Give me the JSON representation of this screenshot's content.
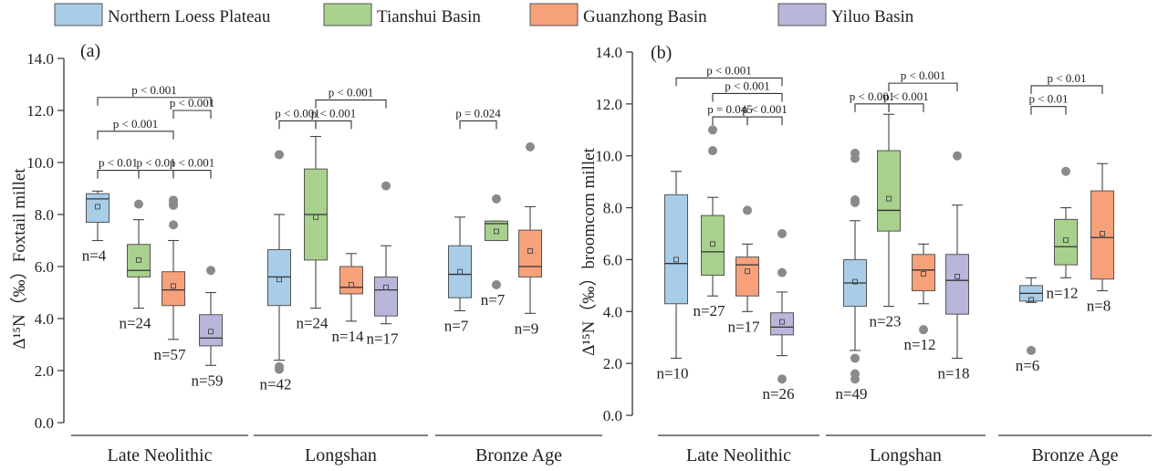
{
  "legend": [
    {
      "name": "Northern Loess Plateau",
      "color": "#a8cde8"
    },
    {
      "name": "Tianshui Basin",
      "color": "#a9d18e"
    },
    {
      "name": "Guanzhong Basin",
      "color": "#f7a17a"
    },
    {
      "name": "Yiluo Basin",
      "color": "#b9b6dc"
    }
  ],
  "chart_data": [
    {
      "type": "box",
      "panel_label": "(a)",
      "ylabel": "Δ¹⁵N（‰）Foxtail millet",
      "ylim": [
        0,
        14
      ],
      "yticks": [
        "0.0",
        "2.0",
        "4.0",
        "6.0",
        "8.0",
        "10.0",
        "12.0",
        "14.0"
      ],
      "periods": [
        "Late Neolithic",
        "Longshan",
        "Bronze Age"
      ],
      "groups": [
        {
          "period": 0,
          "region": 0,
          "n_label": "n=4",
          "min": 7.0,
          "q1": 7.7,
          "median": 8.6,
          "q3": 8.8,
          "max": 8.9,
          "mean": 8.3,
          "outliers": []
        },
        {
          "period": 0,
          "region": 1,
          "n_label": "n=24",
          "min": 4.4,
          "q1": 5.6,
          "median": 5.85,
          "q3": 6.85,
          "max": 7.8,
          "mean": 6.25,
          "outliers": [
            8.4
          ]
        },
        {
          "period": 0,
          "region": 2,
          "n_label": "n=57",
          "min": 3.2,
          "q1": 4.5,
          "median": 5.1,
          "q3": 5.8,
          "max": 7.0,
          "mean": 5.25,
          "outliers": [
            7.6,
            8.35,
            8.45,
            8.55
          ]
        },
        {
          "period": 0,
          "region": 3,
          "n_label": "n=59",
          "min": 2.2,
          "q1": 2.95,
          "median": 3.25,
          "q3": 4.15,
          "max": 5.0,
          "mean": 3.5,
          "outliers": [
            5.85
          ]
        },
        {
          "period": 1,
          "region": 0,
          "n_label": "n=42",
          "min": 2.4,
          "q1": 4.5,
          "median": 5.6,
          "q3": 6.65,
          "max": 8.0,
          "mean": 5.5,
          "outliers": [
            10.3,
            2.05,
            2.15
          ]
        },
        {
          "period": 1,
          "region": 1,
          "n_label": "n=24",
          "min": 4.4,
          "q1": 6.25,
          "median": 8.0,
          "q3": 9.75,
          "max": 11.0,
          "mean": 7.9,
          "outliers": []
        },
        {
          "period": 1,
          "region": 2,
          "n_label": "n=14",
          "min": 3.9,
          "q1": 4.95,
          "median": 5.2,
          "q3": 6.0,
          "max": 6.5,
          "mean": 5.3,
          "outliers": []
        },
        {
          "period": 1,
          "region": 3,
          "n_label": "n=17",
          "min": 3.8,
          "q1": 4.1,
          "median": 5.1,
          "q3": 5.6,
          "max": 6.8,
          "mean": 5.2,
          "outliers": [
            9.1
          ]
        },
        {
          "period": 2,
          "region": 0,
          "n_label": "n=7",
          "min": 4.3,
          "q1": 4.8,
          "median": 5.7,
          "q3": 6.8,
          "max": 7.9,
          "mean": 5.8,
          "outliers": []
        },
        {
          "period": 2,
          "region": 1,
          "n_label": "n=7",
          "min": 7.0,
          "q1": 7.0,
          "median": 7.65,
          "q3": 7.75,
          "max": 7.75,
          "mean": 7.35,
          "outliers": [
            8.6,
            5.3
          ]
        },
        {
          "period": 2,
          "region": 2,
          "n_label": "n=9",
          "min": 4.2,
          "q1": 5.6,
          "median": 6.0,
          "q3": 7.4,
          "max": 8.3,
          "mean": 6.6,
          "outliers": [
            10.6
          ]
        }
      ],
      "comparisons": [
        {
          "from": [
            0,
            0
          ],
          "to": [
            0,
            3
          ],
          "label": "p < 0.001",
          "y": 12.5
        },
        {
          "from": [
            0,
            2
          ],
          "to": [
            0,
            3
          ],
          "label": "p < 0.001",
          "y": 12.0
        },
        {
          "from": [
            0,
            0
          ],
          "to": [
            0,
            2
          ],
          "label": "p < 0.001",
          "y": 11.2
        },
        {
          "from": [
            0,
            0
          ],
          "to": [
            0,
            1
          ],
          "label": "p < 0.01",
          "y": 9.7
        },
        {
          "from": [
            0,
            1
          ],
          "to": [
            0,
            2
          ],
          "label": "p < 0.01",
          "y": 9.7
        },
        {
          "from": [
            0,
            2
          ],
          "to": [
            0,
            3
          ],
          "label": "p < 0.001",
          "y": 9.7
        },
        {
          "from": [
            1,
            1
          ],
          "to": [
            1,
            3
          ],
          "label": "p < 0.001",
          "y": 12.4
        },
        {
          "from": [
            1,
            0
          ],
          "to": [
            1,
            1
          ],
          "label": "p < 0.001",
          "y": 11.6
        },
        {
          "from": [
            1,
            1
          ],
          "to": [
            1,
            2
          ],
          "label": "p < 0.001",
          "y": 11.6
        },
        {
          "from": [
            2,
            0
          ],
          "to": [
            2,
            1
          ],
          "label": "p = 0.024",
          "y": 11.6
        }
      ]
    },
    {
      "type": "box",
      "panel_label": "(b)",
      "ylabel": "Δ¹⁵N（‰）broomcorn millet",
      "ylim": [
        0,
        14
      ],
      "yticks": [
        "0.0",
        "2.0",
        "4.0",
        "6.0",
        "8.0",
        "10.0",
        "12.0",
        "14.0"
      ],
      "periods": [
        "Late Neolithic",
        "Longshan",
        "Bronze Age"
      ],
      "groups": [
        {
          "period": 0,
          "region": 0,
          "n_label": "n=10",
          "min": 2.2,
          "q1": 4.3,
          "median": 5.85,
          "q3": 8.5,
          "max": 9.4,
          "mean": 6.0,
          "outliers": []
        },
        {
          "period": 0,
          "region": 1,
          "n_label": "n=27",
          "min": 4.6,
          "q1": 5.4,
          "median": 6.3,
          "q3": 7.7,
          "max": 8.4,
          "mean": 6.6,
          "outliers": [
            10.2,
            11.0
          ]
        },
        {
          "period": 0,
          "region": 2,
          "n_label": "n=17",
          "min": 4.0,
          "q1": 4.6,
          "median": 5.8,
          "q3": 6.1,
          "max": 6.6,
          "mean": 5.55,
          "outliers": [
            7.9
          ]
        },
        {
          "period": 0,
          "region": 3,
          "n_label": "n=26",
          "min": 2.3,
          "q1": 3.1,
          "median": 3.4,
          "q3": 3.95,
          "max": 4.75,
          "mean": 3.6,
          "outliers": [
            1.4,
            5.5,
            7.0
          ]
        },
        {
          "period": 1,
          "region": 0,
          "n_label": "n=49",
          "min": 2.5,
          "q1": 4.2,
          "median": 5.1,
          "q3": 6.0,
          "max": 7.5,
          "mean": 5.15,
          "outliers": [
            10.1,
            9.9,
            8.3,
            8.2,
            2.2,
            1.6,
            1.4
          ]
        },
        {
          "period": 1,
          "region": 1,
          "n_label": "n=23",
          "min": 4.2,
          "q1": 7.1,
          "median": 7.9,
          "q3": 10.2,
          "max": 11.6,
          "mean": 8.35,
          "outliers": []
        },
        {
          "period": 1,
          "region": 2,
          "n_label": "n=12",
          "min": 4.3,
          "q1": 4.8,
          "median": 5.6,
          "q3": 6.2,
          "max": 6.6,
          "mean": 5.45,
          "outliers": [
            3.3
          ]
        },
        {
          "period": 1,
          "region": 3,
          "n_label": "n=18",
          "min": 2.2,
          "q1": 3.9,
          "median": 5.2,
          "q3": 6.2,
          "max": 8.1,
          "mean": 5.35,
          "outliers": [
            10.0
          ]
        },
        {
          "period": 2,
          "region": 0,
          "n_label": "n=6",
          "min": 4.35,
          "q1": 4.4,
          "median": 4.7,
          "q3": 5.0,
          "max": 5.3,
          "mean": 4.45,
          "outliers": [
            2.5
          ]
        },
        {
          "period": 2,
          "region": 1,
          "n_label": "n=12",
          "min": 5.3,
          "q1": 5.8,
          "median": 6.5,
          "q3": 7.55,
          "max": 8.0,
          "mean": 6.75,
          "outliers": [
            9.4
          ]
        },
        {
          "period": 2,
          "region": 2,
          "n_label": "n=8",
          "min": 4.8,
          "q1": 5.25,
          "median": 6.85,
          "q3": 8.65,
          "max": 9.7,
          "mean": 7.0,
          "outliers": []
        }
      ],
      "comparisons": [
        {
          "from": [
            0,
            0
          ],
          "to": [
            0,
            3
          ],
          "label": "p < 0.001",
          "y": 13.0
        },
        {
          "from": [
            0,
            1
          ],
          "to": [
            0,
            3
          ],
          "label": "p < 0.001",
          "y": 12.4
        },
        {
          "from": [
            0,
            1
          ],
          "to": [
            0,
            2
          ],
          "label": "p = 0.045",
          "y": 11.5
        },
        {
          "from": [
            0,
            2
          ],
          "to": [
            0,
            3
          ],
          "label": "p < 0.001",
          "y": 11.5
        },
        {
          "from": [
            1,
            1
          ],
          "to": [
            1,
            3
          ],
          "label": "p < 0.001",
          "y": 12.8
        },
        {
          "from": [
            1,
            0
          ],
          "to": [
            1,
            1
          ],
          "label": "p < 0.001",
          "y": 12.0
        },
        {
          "from": [
            1,
            1
          ],
          "to": [
            1,
            2
          ],
          "label": "p < 0.001",
          "y": 12.0
        },
        {
          "from": [
            2,
            0
          ],
          "to": [
            2,
            2
          ],
          "label": "p < 0.01",
          "y": 12.7
        },
        {
          "from": [
            2,
            0
          ],
          "to": [
            2,
            1
          ],
          "label": "p < 0.01",
          "y": 11.9
        }
      ]
    }
  ]
}
